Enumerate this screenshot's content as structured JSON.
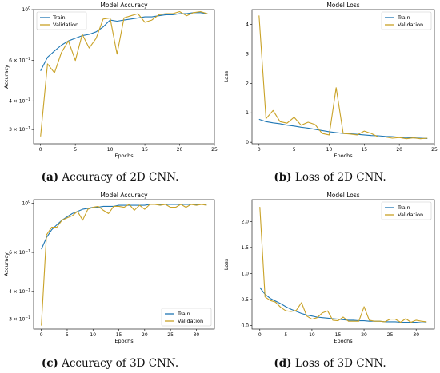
{
  "chart_data": [
    {
      "type": "line",
      "title": "Model Accuracy",
      "xlabel": "Epochs",
      "ylabel": "Accuracy",
      "yscale": "log",
      "xlim": [
        -1,
        25
      ],
      "ylim": [
        0.26,
        1.0
      ],
      "xticks": [
        0,
        5,
        10,
        15,
        20,
        25
      ],
      "yticks": [
        {
          "v": 1.0,
          "base": "10",
          "exp": "0"
        },
        {
          "v": 0.6,
          "base": "6 × 10",
          "exp": "−1"
        },
        {
          "v": 0.4,
          "base": "4 × 10",
          "exp": "−1"
        },
        {
          "v": 0.3,
          "base": "3 × 10",
          "exp": "−1"
        }
      ],
      "legend": "top-left",
      "series": [
        {
          "name": "Train",
          "color": "#1f77b4",
          "x": [
            0,
            1,
            2,
            3,
            4,
            5,
            6,
            7,
            8,
            9,
            10,
            11,
            12,
            13,
            14,
            15,
            16,
            17,
            18,
            19,
            20,
            21,
            22,
            23,
            24
          ],
          "values": [
            0.54,
            0.62,
            0.66,
            0.7,
            0.73,
            0.75,
            0.77,
            0.78,
            0.8,
            0.84,
            0.9,
            0.89,
            0.9,
            0.91,
            0.92,
            0.93,
            0.93,
            0.94,
            0.95,
            0.95,
            0.96,
            0.96,
            0.97,
            0.97,
            0.96
          ]
        },
        {
          "name": "Validation",
          "color": "#c9a227",
          "x": [
            0,
            1,
            2,
            3,
            4,
            5,
            6,
            7,
            8,
            9,
            10,
            11,
            12,
            13,
            14,
            15,
            16,
            17,
            18,
            19,
            20,
            21,
            22,
            23,
            24
          ],
          "values": [
            0.28,
            0.58,
            0.53,
            0.65,
            0.73,
            0.6,
            0.78,
            0.68,
            0.75,
            0.91,
            0.92,
            0.64,
            0.92,
            0.94,
            0.96,
            0.88,
            0.9,
            0.95,
            0.96,
            0.96,
            0.98,
            0.94,
            0.97,
            0.98,
            0.96
          ]
        }
      ],
      "caption": {
        "label": "(a)",
        "text": " Accuracy of 2D CNN."
      }
    },
    {
      "type": "line",
      "title": "Model Loss",
      "xlabel": "Epochs",
      "ylabel": "Loss",
      "xlim": [
        -1,
        25
      ],
      "ylim": [
        -0.05,
        4.5
      ],
      "xticks": [
        0,
        5,
        10,
        15,
        20,
        25
      ],
      "yticks": [
        0,
        1,
        2,
        3,
        4
      ],
      "legend": "top-right",
      "series": [
        {
          "name": "Train",
          "color": "#1f77b4",
          "x": [
            0,
            1,
            2,
            3,
            4,
            5,
            6,
            7,
            8,
            9,
            10,
            11,
            12,
            13,
            14,
            15,
            16,
            17,
            18,
            19,
            20,
            21,
            22,
            23,
            24
          ],
          "values": [
            0.78,
            0.7,
            0.66,
            0.63,
            0.58,
            0.55,
            0.51,
            0.48,
            0.44,
            0.4,
            0.36,
            0.33,
            0.3,
            0.29,
            0.27,
            0.25,
            0.23,
            0.22,
            0.2,
            0.19,
            0.17,
            0.16,
            0.15,
            0.14,
            0.13
          ]
        },
        {
          "name": "Validation",
          "color": "#c9a227",
          "x": [
            0,
            1,
            2,
            3,
            4,
            5,
            6,
            7,
            8,
            9,
            10,
            11,
            12,
            13,
            14,
            15,
            16,
            17,
            18,
            19,
            20,
            21,
            22,
            23,
            24
          ],
          "values": [
            4.3,
            0.8,
            1.08,
            0.7,
            0.65,
            0.85,
            0.58,
            0.68,
            0.6,
            0.3,
            0.25,
            1.85,
            0.3,
            0.28,
            0.25,
            0.38,
            0.3,
            0.18,
            0.18,
            0.14,
            0.16,
            0.12,
            0.15,
            0.12,
            0.14
          ]
        }
      ],
      "caption": {
        "label": "(b)",
        "text": " Loss of 2D CNN."
      }
    },
    {
      "type": "line",
      "title": "Model Accuracy",
      "xlabel": "Epochs",
      "ylabel": "Accuracy",
      "yscale": "log",
      "xlim": [
        -1.5,
        33.5
      ],
      "ylim": [
        0.27,
        1.04
      ],
      "xticks": [
        0,
        5,
        10,
        15,
        20,
        25,
        30
      ],
      "yticks": [
        {
          "v": 1.0,
          "base": "10",
          "exp": "0"
        },
        {
          "v": 0.6,
          "base": "6 × 10",
          "exp": "−1"
        },
        {
          "v": 0.4,
          "base": "4 × 10",
          "exp": "−1"
        },
        {
          "v": 0.3,
          "base": "3 × 10",
          "exp": "−1"
        }
      ],
      "legend": "bottom-right",
      "series": [
        {
          "name": "Train",
          "color": "#1f77b4",
          "x": [
            0,
            1,
            2,
            3,
            4,
            5,
            6,
            7,
            8,
            9,
            10,
            11,
            12,
            13,
            14,
            15,
            16,
            17,
            18,
            19,
            20,
            21,
            22,
            23,
            24,
            25,
            26,
            27,
            28,
            29,
            30,
            31,
            32
          ],
          "values": [
            0.62,
            0.7,
            0.76,
            0.8,
            0.84,
            0.87,
            0.9,
            0.92,
            0.94,
            0.95,
            0.96,
            0.96,
            0.97,
            0.97,
            0.97,
            0.98,
            0.98,
            0.98,
            0.98,
            0.98,
            0.98,
            0.99,
            0.99,
            0.99,
            0.99,
            0.99,
            0.99,
            0.99,
            0.99,
            0.99,
            0.99,
            0.99,
            0.99
          ]
        },
        {
          "name": "Validation",
          "color": "#c9a227",
          "x": [
            0,
            1,
            2,
            3,
            4,
            5,
            6,
            7,
            8,
            9,
            10,
            11,
            12,
            13,
            14,
            15,
            16,
            17,
            18,
            19,
            20,
            21,
            22,
            23,
            24,
            25,
            26,
            27,
            28,
            29,
            30,
            31,
            32
          ],
          "values": [
            0.28,
            0.72,
            0.78,
            0.78,
            0.84,
            0.86,
            0.88,
            0.92,
            0.84,
            0.94,
            0.96,
            0.97,
            0.93,
            0.9,
            0.97,
            0.97,
            0.96,
            0.99,
            0.93,
            0.98,
            0.94,
            0.99,
            0.99,
            0.98,
            0.99,
            0.96,
            0.96,
            0.99,
            0.96,
            0.99,
            0.98,
            0.99,
            0.98
          ]
        }
      ],
      "caption": {
        "label": "(c)",
        "text": " Accuracy of 3D CNN."
      }
    },
    {
      "type": "line",
      "title": "Model Loss",
      "xlabel": "Epochs",
      "ylabel": "Loss",
      "xlim": [
        -1.5,
        33.5
      ],
      "ylim": [
        -0.07,
        2.42
      ],
      "xticks": [
        0,
        5,
        10,
        15,
        20,
        25,
        30
      ],
      "yticks": [
        0.0,
        0.5,
        1.0,
        1.5,
        2.0
      ],
      "ytickfmt": "1dp",
      "legend": "top-right",
      "series": [
        {
          "name": "Train",
          "color": "#1f77b4",
          "x": [
            0,
            1,
            2,
            3,
            4,
            5,
            6,
            7,
            8,
            9,
            10,
            11,
            12,
            13,
            14,
            15,
            16,
            17,
            18,
            19,
            20,
            21,
            22,
            23,
            24,
            25,
            26,
            27,
            28,
            29,
            30,
            31,
            32
          ],
          "values": [
            0.73,
            0.6,
            0.52,
            0.47,
            0.42,
            0.36,
            0.31,
            0.27,
            0.23,
            0.2,
            0.18,
            0.16,
            0.15,
            0.14,
            0.13,
            0.12,
            0.11,
            0.1,
            0.1,
            0.09,
            0.09,
            0.08,
            0.08,
            0.08,
            0.07,
            0.07,
            0.07,
            0.06,
            0.06,
            0.06,
            0.06,
            0.05,
            0.05
          ]
        },
        {
          "name": "Validation",
          "color": "#c9a227",
          "x": [
            0,
            1,
            2,
            3,
            4,
            5,
            6,
            7,
            8,
            9,
            10,
            11,
            12,
            13,
            14,
            15,
            16,
            17,
            18,
            19,
            20,
            21,
            22,
            23,
            24,
            25,
            26,
            27,
            28,
            29,
            30,
            31,
            32
          ],
          "values": [
            2.28,
            0.55,
            0.48,
            0.45,
            0.35,
            0.28,
            0.27,
            0.29,
            0.44,
            0.18,
            0.12,
            0.15,
            0.24,
            0.28,
            0.1,
            0.09,
            0.16,
            0.08,
            0.08,
            0.08,
            0.36,
            0.1,
            0.08,
            0.08,
            0.07,
            0.12,
            0.12,
            0.06,
            0.13,
            0.06,
            0.1,
            0.08,
            0.07
          ]
        }
      ],
      "caption": {
        "label": "(d)",
        "text": " Loss of 3D CNN."
      }
    }
  ]
}
